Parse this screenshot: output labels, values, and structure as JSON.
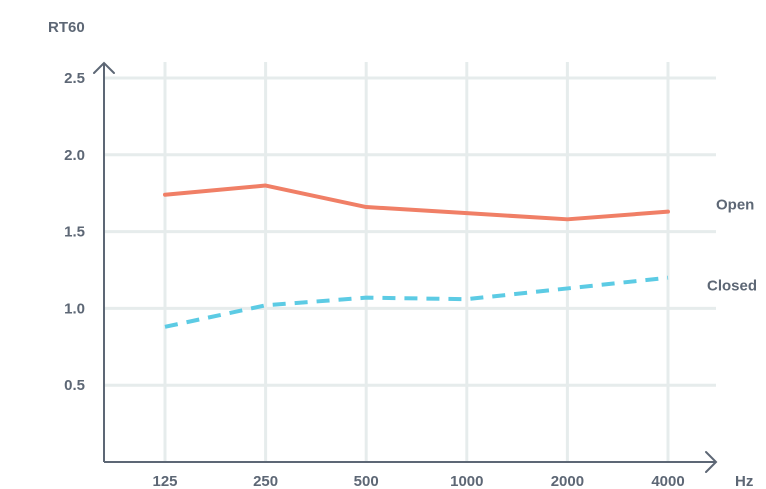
{
  "chart_data": {
    "type": "line",
    "title": "",
    "ylabel": "RT60",
    "xlabel": "Hz",
    "categories": [
      "125",
      "250",
      "500",
      "1000",
      "2000",
      "4000"
    ],
    "yticks": [
      "0.5",
      "1.0",
      "1.5",
      "2.0",
      "2.5"
    ],
    "ylim": [
      0,
      2.5
    ],
    "grid": true,
    "legend": "inline-right",
    "series": [
      {
        "name": "Open",
        "values": [
          1.74,
          1.8,
          1.66,
          1.62,
          1.58,
          1.63
        ],
        "color": "#f07f66",
        "style": "solid"
      },
      {
        "name": "Closed",
        "values": [
          0.88,
          1.02,
          1.07,
          1.06,
          1.13,
          1.2
        ],
        "color": "#5ccbe4",
        "style": "dashed"
      }
    ],
    "colors": {
      "axis": "#5d6775",
      "grid": "#e6ecec",
      "text": "#5d6775"
    }
  }
}
